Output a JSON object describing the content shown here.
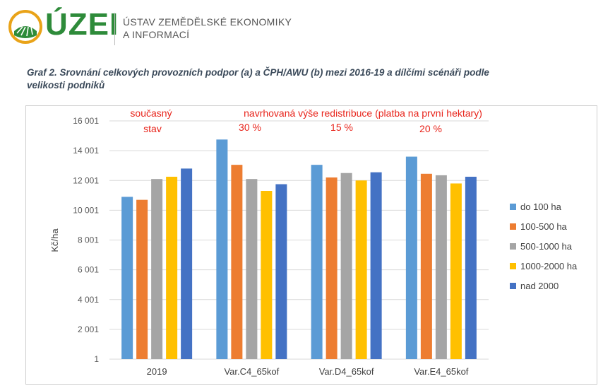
{
  "header": {
    "logo_text": "ÚZEI",
    "subtitle_line1": "ÚSTAV ZEMĚDĚLSKÉ EKONOMIKY",
    "subtitle_line2": "A INFORMACÍ"
  },
  "graph_title_line1": "Graf 2.  Srovnání celkových provozních podpor (a) a ČPH/AWU (b) mezi 2016-19 a dílčími scénáři podle",
  "graph_title_line2": "velikosti podniků",
  "annotations": {
    "current_line1": "současný",
    "current_line2": "stav",
    "proposed": "navrhovaná výše redistribuce (platba na první hektary)",
    "pct_c4": "30 %",
    "pct_d4": "15 %",
    "pct_e4": "20 %"
  },
  "chart_data": {
    "type": "bar",
    "title": "",
    "xlabel": "",
    "ylabel": "Kč/ha",
    "ylim": [
      1,
      16001
    ],
    "yticks": [
      "16 001",
      "14 001",
      "12 001",
      "10 001",
      "8 001",
      "6 001",
      "4 001",
      "2 001",
      "1"
    ],
    "ytick_values": [
      16001,
      14001,
      12001,
      10001,
      8001,
      6001,
      4001,
      2001,
      1
    ],
    "categories": [
      "2019",
      "Var.C4_65kof",
      "Var.D4_65kof",
      "Var.E4_65kof"
    ],
    "grid": true,
    "legend_position": "right",
    "series": [
      {
        "name": "do 100 ha",
        "color": "#5b9bd5",
        "values": [
          10900,
          14750,
          13050,
          13600
        ]
      },
      {
        "name": "100-500 ha",
        "color": "#ed7d31",
        "values": [
          10700,
          13050,
          12200,
          12450
        ]
      },
      {
        "name": "500-1000 ha",
        "color": "#a5a5a5",
        "values": [
          12100,
          12100,
          12500,
          12350
        ]
      },
      {
        "name": "1000-2000 ha",
        "color": "#ffc000",
        "values": [
          12250,
          11300,
          12000,
          11800
        ]
      },
      {
        "name": "nad 2000",
        "color": "#4472c4",
        "values": [
          12800,
          11750,
          12550,
          12250
        ]
      }
    ]
  }
}
